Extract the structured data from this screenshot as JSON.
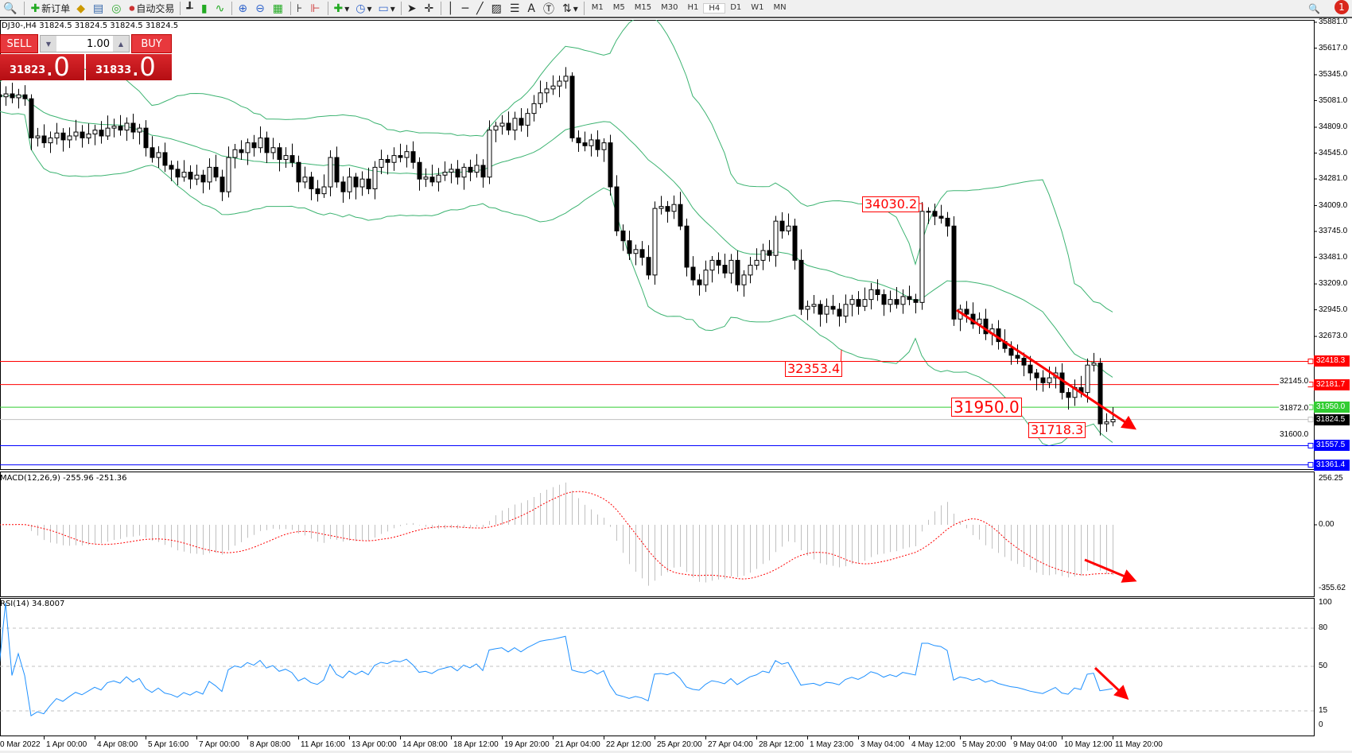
{
  "toolbar": {
    "new_order": "新订单",
    "auto_trading": "自动交易",
    "timeframes": [
      "M1",
      "M5",
      "M15",
      "M30",
      "H1",
      "H4",
      "D1",
      "W1",
      "MN"
    ],
    "active_timeframe": "H4",
    "notification_count": "1"
  },
  "chart": {
    "title": "DJ30-,H4  31824.5 31824.5 31824.5 31824.5"
  },
  "trade_panel": {
    "sell_label": "SELL",
    "buy_label": "BUY",
    "lot": "1.00",
    "sell_int": "31823",
    "sell_big": ".0",
    "buy_int": "31833",
    "buy_big": ".0"
  },
  "price_axis": {
    "labels": [
      "35881.0",
      "35617.0",
      "35345.0",
      "35081.0",
      "34809.0",
      "34545.0",
      "34281.0",
      "34009.0",
      "33745.0",
      "33481.0",
      "33209.0",
      "32945.0",
      "32673.0",
      "32145.0",
      "31872.0",
      "31600.0"
    ]
  },
  "levels": [
    {
      "value": "32418.3",
      "color": "#ff0000"
    },
    {
      "value": "32181.7",
      "color": "#ff0000"
    },
    {
      "value": "31950.0",
      "color": "#32cd32"
    },
    {
      "value": "31824.5",
      "color": "#000000",
      "line": "#c0c0c0"
    },
    {
      "value": "31557.5",
      "color": "#0000ff"
    },
    {
      "value": "31361.4",
      "color": "#0000ff"
    }
  ],
  "annotations": [
    "34030.2",
    "32353.4",
    "31950.0",
    "31718.3"
  ],
  "macd": {
    "label": "MACD(12,26,9) -255.96 -251.36",
    "axis": [
      "256.25",
      "0.00",
      "-355.62"
    ]
  },
  "rsi": {
    "label": "RSI(14) 34.8007",
    "axis": [
      "100",
      "80",
      "50",
      "15",
      "0"
    ]
  },
  "time_axis": [
    "0 Mar 2022",
    "1 Apr 00:00",
    "4 Apr 08:00",
    "5 Apr 16:00",
    "7 Apr 00:00",
    "8 Apr 08:00",
    "11 Apr 16:00",
    "13 Apr 00:00",
    "14 Apr 08:00",
    "18 Apr 12:00",
    "19 Apr 20:00",
    "21 Apr 04:00",
    "22 Apr 12:00",
    "25 Apr 20:00",
    "27 Apr 04:00",
    "28 Apr 12:00",
    "1 May 23:00",
    "3 May 04:00",
    "4 May 12:00",
    "5 May 20:00",
    "9 May 04:00",
    "10 May 12:00",
    "11 May 20:00"
  ],
  "colors": {
    "bands": "#3cb371",
    "macd_hist": "#c0c0c0",
    "macd_signal": "#ff0000",
    "rsi": "#1e90ff",
    "arrow": "#ff0000"
  },
  "chart_data": {
    "type": "candlestick",
    "symbol": "DJ30-",
    "timeframe": "H4",
    "ylim": [
      31361.4,
      35881.0
    ],
    "indicators": [
      "Bollinger Bands",
      "MACD(12,26,9)",
      "RSI(14)"
    ],
    "close": [
      35120,
      35150,
      35110,
      35140,
      35100,
      34700,
      34720,
      34650,
      34700,
      34750,
      34680,
      34720,
      34760,
      34700,
      34740,
      34780,
      34720,
      34800,
      34820,
      34780,
      34850,
      34760,
      34800,
      34600,
      34500,
      34550,
      34420,
      34380,
      34300,
      34350,
      34280,
      34320,
      34250,
      34400,
      34300,
      34150,
      34500,
      34580,
      34550,
      34650,
      34600,
      34700,
      34550,
      34600,
      34480,
      34520,
      34450,
      34250,
      34300,
      34180,
      34130,
      34200,
      34500,
      34250,
      34150,
      34300,
      34200,
      34280,
      34180,
      34400,
      34480,
      34450,
      34520,
      34500,
      34560,
      34450,
      34280,
      34300,
      34250,
      34320,
      34350,
      34380,
      34300,
      34400,
      34350,
      34420,
      34300,
      34780,
      34820,
      34850,
      34780,
      34900,
      34830,
      34950,
      35050,
      35160,
      35200,
      35230,
      35280,
      35330,
      34700,
      34650,
      34620,
      34680,
      34580,
      34650,
      34200,
      33750,
      33650,
      33520,
      33560,
      33480,
      33300,
      33980,
      34000,
      33950,
      34020,
      33800,
      33380,
      33250,
      33200,
      33350,
      33450,
      33400,
      33320,
      33450,
      33200,
      33300,
      33400,
      33450,
      33550,
      33500,
      33850,
      33750,
      33800,
      33450,
      32950,
      32980,
      33000,
      32900,
      32980,
      32950,
      32880,
      33000,
      33050,
      32980,
      33050,
      33150,
      33100,
      33000,
      33050,
      33000,
      33080,
      33050,
      33020,
      33950,
      33950,
      33900,
      33880,
      33800,
      32850,
      32950,
      32900,
      32800,
      32850,
      32700,
      32750,
      32620,
      32550,
      32480,
      32450,
      32380,
      32300,
      32250,
      32200,
      32250,
      32300,
      32100,
      32050,
      32150,
      32100,
      32380,
      32400,
      31780,
      31800,
      31824.5
    ]
  }
}
